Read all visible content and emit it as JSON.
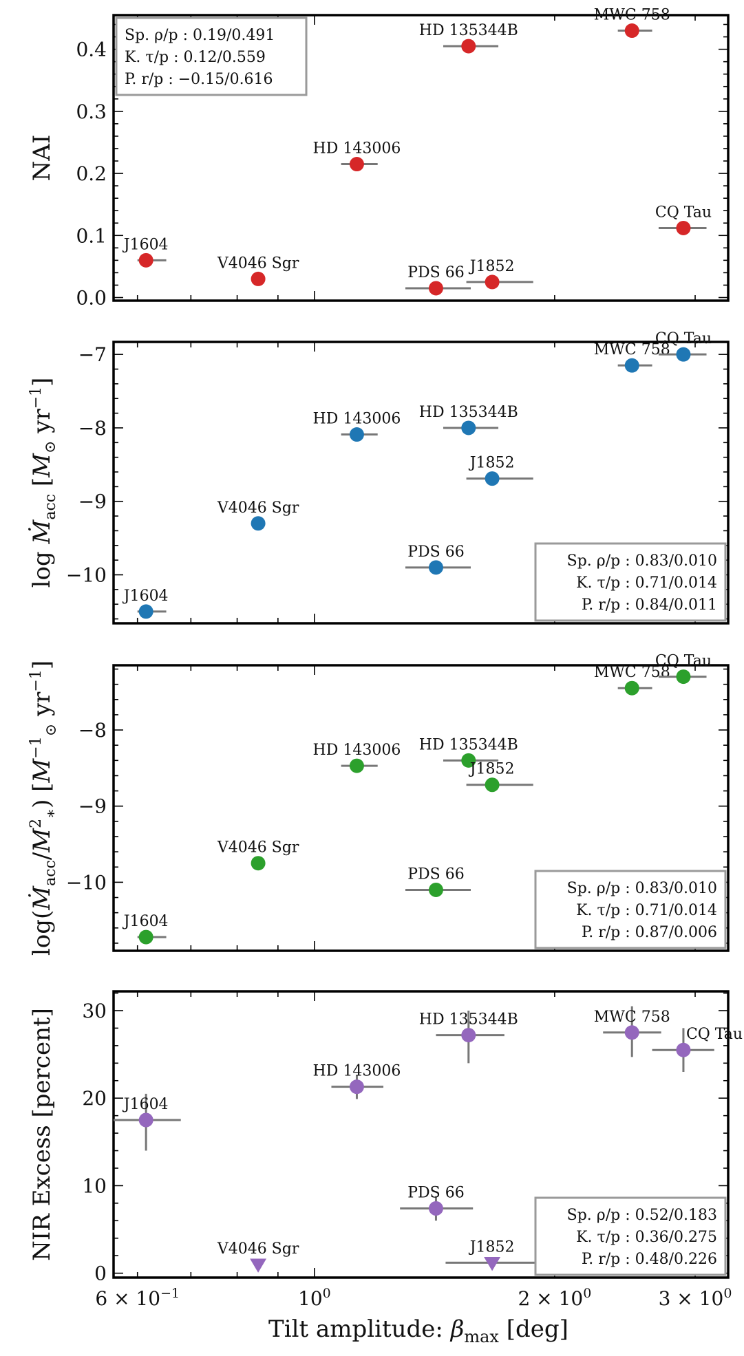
{
  "chart_data": [
    {
      "type": "scatter",
      "panel": "NAI",
      "ylabel": "NAI",
      "xscale": "log",
      "xlim": [
        0.56,
        3.3
      ],
      "ylim": [
        -0.005,
        0.455
      ],
      "yticks": [
        {
          "value": 0.0,
          "label": "0.0"
        },
        {
          "value": 0.1,
          "label": "0.1"
        },
        {
          "value": 0.2,
          "label": "0.2"
        },
        {
          "value": 0.3,
          "label": "0.3"
        },
        {
          "value": 0.4,
          "label": "0.4"
        }
      ],
      "color": "#d62728",
      "stats_position": "top-left",
      "stats": [
        "Sp. ρ/p : 0.19/0.491",
        "K. τ/p : 0.12/0.559",
        "P. r/p : −0.15/0.616"
      ],
      "points": [
        {
          "name": "J1604",
          "x": 0.615,
          "y": 0.06,
          "xlo": 0.6,
          "xhi": 0.652,
          "marker": "circle",
          "label_pos": "above"
        },
        {
          "name": "V4046 Sgr",
          "x": 0.85,
          "y": 0.03,
          "marker": "circle",
          "label_pos": "above"
        },
        {
          "name": "HD 143006",
          "x": 1.13,
          "y": 0.215,
          "xlo": 1.08,
          "xhi": 1.2,
          "marker": "circle",
          "label_pos": "above"
        },
        {
          "name": "PDS 66",
          "x": 1.42,
          "y": 0.015,
          "xlo": 1.3,
          "xhi": 1.57,
          "marker": "circle",
          "label_pos": "above"
        },
        {
          "name": "HD 135344B",
          "x": 1.56,
          "y": 0.405,
          "xlo": 1.45,
          "xhi": 1.7,
          "marker": "circle",
          "label_pos": "above"
        },
        {
          "name": "J1852",
          "x": 1.67,
          "y": 0.025,
          "xlo": 1.55,
          "xhi": 1.88,
          "marker": "circle",
          "label_pos": "above"
        },
        {
          "name": "MWC 758",
          "x": 2.5,
          "y": 0.43,
          "xlo": 2.4,
          "xhi": 2.65,
          "marker": "circle",
          "label_pos": "above"
        },
        {
          "name": "CQ Tau",
          "x": 2.9,
          "y": 0.112,
          "xlo": 2.7,
          "xhi": 3.1,
          "marker": "circle",
          "label_pos": "above"
        }
      ]
    },
    {
      "type": "scatter",
      "panel": "log_Macc",
      "ylabel": "log Ṁacc [M⊙ yr−1]",
      "xscale": "log",
      "xlim": [
        0.56,
        3.3
      ],
      "ylim": [
        -10.66,
        -6.83
      ],
      "yticks": [
        {
          "value": -10,
          "label": "−10"
        },
        {
          "value": -9,
          "label": "−9"
        },
        {
          "value": -8,
          "label": "−8"
        },
        {
          "value": -7,
          "label": "−7"
        }
      ],
      "color": "#1f77b4",
      "stats_position": "bottom-right",
      "stats": [
        "Sp. ρ/p : 0.83/0.010",
        "K. τ/p : 0.71/0.014",
        "P. r/p : 0.84/0.011"
      ],
      "points": [
        {
          "name": "J1604",
          "x": 0.615,
          "y": -10.5,
          "xlo": 0.6,
          "xhi": 0.652,
          "marker": "circle",
          "label_pos": "above"
        },
        {
          "name": "V4046 Sgr",
          "x": 0.85,
          "y": -9.3,
          "marker": "circle",
          "label_pos": "above"
        },
        {
          "name": "HD 143006",
          "x": 1.13,
          "y": -8.09,
          "xlo": 1.08,
          "xhi": 1.2,
          "marker": "circle",
          "label_pos": "above"
        },
        {
          "name": "PDS 66",
          "x": 1.42,
          "y": -9.9,
          "xlo": 1.3,
          "xhi": 1.57,
          "marker": "circle",
          "label_pos": "above"
        },
        {
          "name": "HD 135344B",
          "x": 1.56,
          "y": -8.0,
          "xlo": 1.45,
          "xhi": 1.7,
          "marker": "circle",
          "label_pos": "above"
        },
        {
          "name": "J1852",
          "x": 1.67,
          "y": -8.69,
          "xlo": 1.55,
          "xhi": 1.88,
          "marker": "circle",
          "label_pos": "above"
        },
        {
          "name": "MWC 758",
          "x": 2.5,
          "y": -7.15,
          "xlo": 2.4,
          "xhi": 2.65,
          "marker": "circle",
          "label_pos": "above"
        },
        {
          "name": "CQ Tau",
          "x": 2.9,
          "y": -7.0,
          "xlo": 2.7,
          "xhi": 3.1,
          "marker": "circle",
          "label_pos": "above"
        }
      ]
    },
    {
      "type": "scatter",
      "panel": "log_Macc_over_Mstar2",
      "ylabel": "log(Ṁacc/M∗²) [M⊙−1 yr−1]",
      "xscale": "log",
      "xlim": [
        0.56,
        3.3
      ],
      "ylim": [
        -10.9,
        -7.15
      ],
      "yticks": [
        {
          "value": -10,
          "label": "−10"
        },
        {
          "value": -9,
          "label": "−9"
        },
        {
          "value": -8,
          "label": "−8"
        }
      ],
      "color": "#2ca02c",
      "stats_position": "bottom-right",
      "stats": [
        "Sp. ρ/p : 0.83/0.010",
        "K. τ/p : 0.71/0.014",
        "P. r/p : 0.87/0.006"
      ],
      "points": [
        {
          "name": "J1604",
          "x": 0.615,
          "y": -10.72,
          "xlo": 0.6,
          "xhi": 0.652,
          "marker": "circle",
          "label_pos": "above"
        },
        {
          "name": "V4046 Sgr",
          "x": 0.85,
          "y": -9.75,
          "marker": "circle",
          "label_pos": "above"
        },
        {
          "name": "HD 143006",
          "x": 1.13,
          "y": -8.47,
          "xlo": 1.08,
          "xhi": 1.2,
          "marker": "circle",
          "label_pos": "above"
        },
        {
          "name": "PDS 66",
          "x": 1.42,
          "y": -10.1,
          "xlo": 1.3,
          "xhi": 1.57,
          "marker": "circle",
          "label_pos": "above"
        },
        {
          "name": "HD 135344B",
          "x": 1.56,
          "y": -8.4,
          "xlo": 1.45,
          "xhi": 1.7,
          "marker": "circle",
          "label_pos": "above"
        },
        {
          "name": "J1852",
          "x": 1.67,
          "y": -8.72,
          "xlo": 1.55,
          "xhi": 1.88,
          "marker": "circle",
          "label_pos": "above"
        },
        {
          "name": "MWC 758",
          "x": 2.5,
          "y": -7.45,
          "xlo": 2.4,
          "xhi": 2.65,
          "marker": "circle",
          "label_pos": "above"
        },
        {
          "name": "CQ Tau",
          "x": 2.9,
          "y": -7.3,
          "xlo": 2.7,
          "xhi": 3.1,
          "marker": "circle",
          "label_pos": "above"
        }
      ]
    },
    {
      "type": "scatter",
      "panel": "NIR_excess",
      "ylabel": "NIR Excess [percent]",
      "xlabel": "Tilt amplitude: βmax [deg]",
      "xscale": "log",
      "xlim": [
        0.56,
        3.3
      ],
      "ylim": [
        -0.5,
        32.2
      ],
      "yticks": [
        {
          "value": 0,
          "label": "0"
        },
        {
          "value": 10,
          "label": "10"
        },
        {
          "value": 20,
          "label": "20"
        },
        {
          "value": 30,
          "label": "30"
        }
      ],
      "xticks": [
        {
          "value": 0.6,
          "label": "6 × 10⁻¹"
        },
        {
          "value": 1.0,
          "label": "10⁰"
        },
        {
          "value": 2.0,
          "label": "2 × 10⁰"
        },
        {
          "value": 3.0,
          "label": "3 × 10⁰"
        }
      ],
      "color": "#9467bd",
      "stats_position": "bottom-right",
      "stats": [
        "Sp. ρ/p : 0.52/0.183",
        "K. τ/p : 0.36/0.275",
        "P. r/p : 0.48/0.226"
      ],
      "points": [
        {
          "name": "J1604",
          "x": 0.615,
          "y": 17.5,
          "xlo": 0.56,
          "xhi": 0.68,
          "ylo": 14.0,
          "yhi": 20.5,
          "marker": "circle",
          "label_pos": "above"
        },
        {
          "name": "V4046 Sgr",
          "x": 0.85,
          "y": 1.0,
          "marker": "triangle-down",
          "label_pos": "above"
        },
        {
          "name": "HD 143006",
          "x": 1.13,
          "y": 21.3,
          "xlo": 1.05,
          "xhi": 1.22,
          "ylo": 19.9,
          "yhi": 22.6,
          "marker": "circle",
          "label_pos": "above"
        },
        {
          "name": "PDS 66",
          "x": 1.42,
          "y": 7.4,
          "xlo": 1.28,
          "xhi": 1.58,
          "ylo": 6.0,
          "yhi": 8.8,
          "marker": "circle",
          "label_pos": "above"
        },
        {
          "name": "HD 135344B",
          "x": 1.56,
          "y": 27.2,
          "xlo": 1.42,
          "xhi": 1.73,
          "ylo": 24.0,
          "yhi": 30.0,
          "marker": "circle",
          "label_pos": "above"
        },
        {
          "name": "J1852",
          "x": 1.67,
          "y": 1.2,
          "xlo": 1.46,
          "xhi": 1.93,
          "marker": "triangle-down",
          "label_pos": "above"
        },
        {
          "name": "MWC 758",
          "x": 2.5,
          "y": 27.5,
          "xlo": 2.3,
          "xhi": 2.72,
          "ylo": 24.7,
          "yhi": 30.5,
          "marker": "circle",
          "label_pos": "above"
        },
        {
          "name": "CQ Tau",
          "x": 2.9,
          "y": 25.5,
          "xlo": 2.65,
          "xhi": 3.17,
          "ylo": 23.0,
          "yhi": 28.0,
          "marker": "circle",
          "label_pos": "right-top"
        }
      ]
    }
  ]
}
